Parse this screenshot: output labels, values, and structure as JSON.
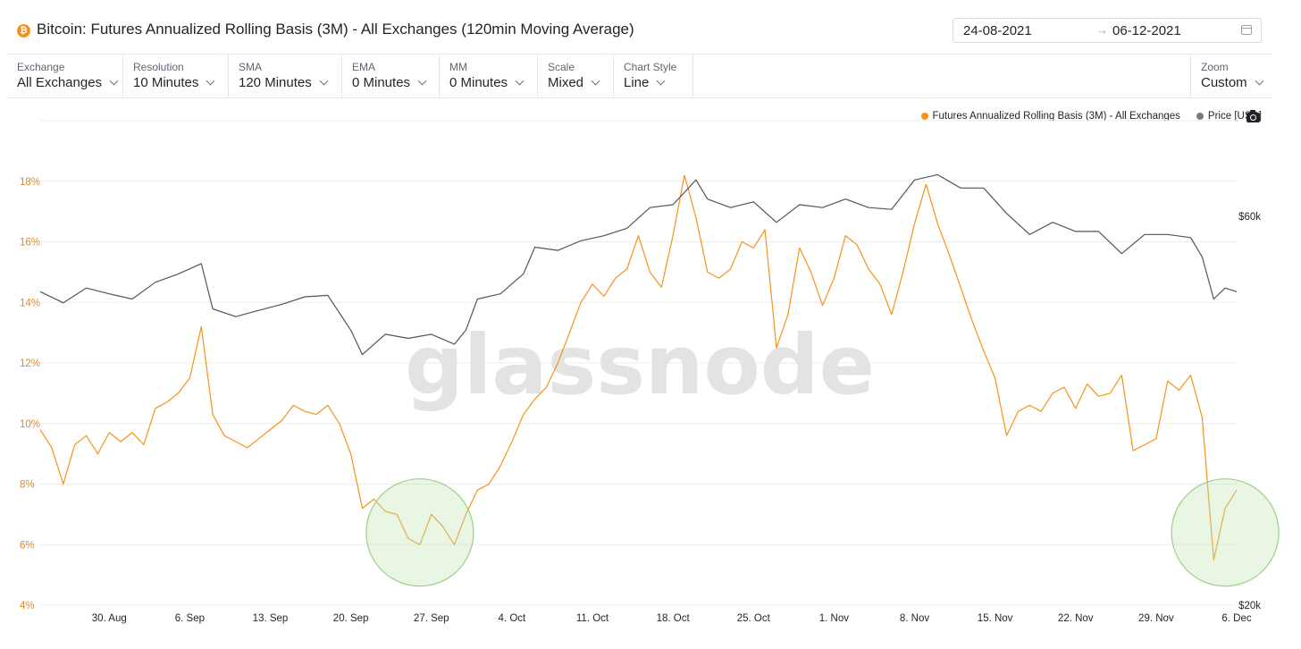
{
  "header": {
    "coin_icon": "bitcoin-icon",
    "title": "Bitcoin: Futures Annualized Rolling Basis (3M) - All Exchanges (120min Moving Average)",
    "date_start": "24-08-2021",
    "date_arrow": "→",
    "date_end": "06-12-2021"
  },
  "controls": [
    {
      "label": "Exchange",
      "value": "All Exchanges"
    },
    {
      "label": "Resolution",
      "value": "10 Minutes"
    },
    {
      "label": "SMA",
      "value": "120 Minutes"
    },
    {
      "label": "EMA",
      "value": "0 Minutes"
    },
    {
      "label": "MM",
      "value": "0 Minutes"
    },
    {
      "label": "Scale",
      "value": "Mixed"
    },
    {
      "label": "Chart Style",
      "value": "Line"
    },
    {
      "label": "Zoom",
      "value": "Custom"
    }
  ],
  "legend": [
    {
      "name": "Futures Annualized Rolling Basis (3M) - All Exchanges",
      "color": "#f7931a"
    },
    {
      "name": "Price [USD]",
      "color": "#7a7a7a"
    }
  ],
  "watermark": "glassnode",
  "chart_data": {
    "type": "line",
    "x_ticks": [
      "30. Aug",
      "6. Sep",
      "13. Sep",
      "20. Sep",
      "27. Sep",
      "4. Oct",
      "11. Oct",
      "18. Oct",
      "25. Oct",
      "1. Nov",
      "8. Nov",
      "15. Nov",
      "22. Nov",
      "29. Nov",
      "6. Dec"
    ],
    "xlim": [
      "2021-08-24",
      "2021-12-06"
    ],
    "y_left": {
      "ticks": [
        "4%",
        "6%",
        "8%",
        "10%",
        "12%",
        "14%",
        "16%",
        "18%"
      ],
      "ylim": [
        4,
        20
      ],
      "unit": "%",
      "scale": "linear"
    },
    "y_right": {
      "ticks": [
        "$20k",
        "$60k"
      ],
      "tick_values": [
        20000,
        60000
      ],
      "scale": "log"
    },
    "series": [
      {
        "name": "Futures Annualized Rolling Basis (3M) - All Exchanges",
        "axis": "left",
        "color": "#f7931a",
        "points": [
          [
            "2021-08-24",
            9.8
          ],
          [
            "2021-08-25",
            9.2
          ],
          [
            "2021-08-26",
            8.0
          ],
          [
            "2021-08-27",
            9.3
          ],
          [
            "2021-08-28",
            9.6
          ],
          [
            "2021-08-29",
            9.0
          ],
          [
            "2021-08-30",
            9.7
          ],
          [
            "2021-08-31",
            9.4
          ],
          [
            "2021-09-01",
            9.7
          ],
          [
            "2021-09-02",
            9.3
          ],
          [
            "2021-09-03",
            10.5
          ],
          [
            "2021-09-04",
            10.7
          ],
          [
            "2021-09-05",
            11.0
          ],
          [
            "2021-09-06",
            11.5
          ],
          [
            "2021-09-07",
            13.2
          ],
          [
            "2021-09-08",
            10.3
          ],
          [
            "2021-09-09",
            9.6
          ],
          [
            "2021-09-10",
            9.4
          ],
          [
            "2021-09-11",
            9.2
          ],
          [
            "2021-09-12",
            9.5
          ],
          [
            "2021-09-13",
            9.8
          ],
          [
            "2021-09-14",
            10.1
          ],
          [
            "2021-09-15",
            10.6
          ],
          [
            "2021-09-16",
            10.4
          ],
          [
            "2021-09-17",
            10.3
          ],
          [
            "2021-09-18",
            10.6
          ],
          [
            "2021-09-19",
            10.0
          ],
          [
            "2021-09-20",
            9.0
          ],
          [
            "2021-09-21",
            7.2
          ],
          [
            "2021-09-22",
            7.5
          ],
          [
            "2021-09-23",
            7.1
          ],
          [
            "2021-09-24",
            7.0
          ],
          [
            "2021-09-25",
            6.2
          ],
          [
            "2021-09-26",
            6.0
          ],
          [
            "2021-09-27",
            7.0
          ],
          [
            "2021-09-28",
            6.6
          ],
          [
            "2021-09-29",
            6.0
          ],
          [
            "2021-09-30",
            7.0
          ],
          [
            "2021-10-01",
            7.8
          ],
          [
            "2021-10-02",
            8.0
          ],
          [
            "2021-10-03",
            8.6
          ],
          [
            "2021-10-04",
            9.4
          ],
          [
            "2021-10-05",
            10.3
          ],
          [
            "2021-10-06",
            10.8
          ],
          [
            "2021-10-07",
            11.2
          ],
          [
            "2021-10-08",
            12.0
          ],
          [
            "2021-10-09",
            13.0
          ],
          [
            "2021-10-10",
            14.0
          ],
          [
            "2021-10-11",
            14.6
          ],
          [
            "2021-10-12",
            14.2
          ],
          [
            "2021-10-13",
            14.8
          ],
          [
            "2021-10-14",
            15.1
          ],
          [
            "2021-10-15",
            16.2
          ],
          [
            "2021-10-16",
            15.0
          ],
          [
            "2021-10-17",
            14.5
          ],
          [
            "2021-10-18",
            16.2
          ],
          [
            "2021-10-19",
            18.2
          ],
          [
            "2021-10-20",
            16.8
          ],
          [
            "2021-10-21",
            15.0
          ],
          [
            "2021-10-22",
            14.8
          ],
          [
            "2021-10-23",
            15.1
          ],
          [
            "2021-10-24",
            16.0
          ],
          [
            "2021-10-25",
            15.8
          ],
          [
            "2021-10-26",
            16.4
          ],
          [
            "2021-10-27",
            12.5
          ],
          [
            "2021-10-28",
            13.6
          ],
          [
            "2021-10-29",
            15.8
          ],
          [
            "2021-10-30",
            15.0
          ],
          [
            "2021-10-31",
            13.9
          ],
          [
            "2021-11-01",
            14.8
          ],
          [
            "2021-11-02",
            16.2
          ],
          [
            "2021-11-03",
            15.9
          ],
          [
            "2021-11-04",
            15.1
          ],
          [
            "2021-11-05",
            14.6
          ],
          [
            "2021-11-06",
            13.6
          ],
          [
            "2021-11-07",
            15.0
          ],
          [
            "2021-11-08",
            16.6
          ],
          [
            "2021-11-09",
            17.9
          ],
          [
            "2021-11-10",
            16.6
          ],
          [
            "2021-11-11",
            15.6
          ],
          [
            "2021-11-12",
            14.5
          ],
          [
            "2021-11-13",
            13.4
          ],
          [
            "2021-11-14",
            12.4
          ],
          [
            "2021-11-15",
            11.5
          ],
          [
            "2021-11-16",
            9.6
          ],
          [
            "2021-11-17",
            10.4
          ],
          [
            "2021-11-18",
            10.6
          ],
          [
            "2021-11-19",
            10.4
          ],
          [
            "2021-11-20",
            11.0
          ],
          [
            "2021-11-21",
            11.2
          ],
          [
            "2021-11-22",
            10.5
          ],
          [
            "2021-11-23",
            11.3
          ],
          [
            "2021-11-24",
            10.9
          ],
          [
            "2021-11-25",
            11.0
          ],
          [
            "2021-11-26",
            11.6
          ],
          [
            "2021-11-27",
            9.1
          ],
          [
            "2021-11-28",
            9.3
          ],
          [
            "2021-11-29",
            9.5
          ],
          [
            "2021-11-30",
            11.4
          ],
          [
            "2021-12-01",
            11.1
          ],
          [
            "2021-12-02",
            11.6
          ],
          [
            "2021-12-03",
            10.2
          ],
          [
            "2021-12-04",
            5.5
          ],
          [
            "2021-12-05",
            7.2
          ],
          [
            "2021-12-06",
            7.8
          ]
        ]
      },
      {
        "name": "Price [USD]",
        "axis": "right",
        "color": "#555555",
        "points": [
          [
            "2021-08-24",
            48500
          ],
          [
            "2021-08-26",
            47000
          ],
          [
            "2021-08-28",
            49000
          ],
          [
            "2021-08-30",
            48200
          ],
          [
            "2021-09-01",
            47500
          ],
          [
            "2021-09-03",
            49800
          ],
          [
            "2021-09-05",
            51000
          ],
          [
            "2021-09-07",
            52500
          ],
          [
            "2021-09-08",
            46200
          ],
          [
            "2021-09-10",
            45200
          ],
          [
            "2021-09-12",
            46000
          ],
          [
            "2021-09-14",
            46800
          ],
          [
            "2021-09-16",
            47800
          ],
          [
            "2021-09-18",
            48000
          ],
          [
            "2021-09-20",
            43500
          ],
          [
            "2021-09-21",
            40600
          ],
          [
            "2021-09-23",
            43000
          ],
          [
            "2021-09-25",
            42500
          ],
          [
            "2021-09-27",
            43000
          ],
          [
            "2021-09-29",
            41800
          ],
          [
            "2021-09-30",
            43500
          ],
          [
            "2021-10-01",
            47500
          ],
          [
            "2021-10-03",
            48200
          ],
          [
            "2021-10-05",
            51000
          ],
          [
            "2021-10-06",
            55000
          ],
          [
            "2021-10-08",
            54500
          ],
          [
            "2021-10-10",
            56000
          ],
          [
            "2021-10-12",
            56800
          ],
          [
            "2021-10-14",
            58000
          ],
          [
            "2021-10-16",
            61500
          ],
          [
            "2021-10-18",
            62000
          ],
          [
            "2021-10-20",
            66500
          ],
          [
            "2021-10-21",
            63000
          ],
          [
            "2021-10-23",
            61500
          ],
          [
            "2021-10-25",
            62500
          ],
          [
            "2021-10-27",
            59000
          ],
          [
            "2021-10-29",
            62000
          ],
          [
            "2021-10-31",
            61500
          ],
          [
            "2021-11-02",
            63000
          ],
          [
            "2021-11-04",
            61500
          ],
          [
            "2021-11-06",
            61200
          ],
          [
            "2021-11-08",
            66500
          ],
          [
            "2021-11-10",
            67500
          ],
          [
            "2021-11-12",
            65000
          ],
          [
            "2021-11-14",
            65000
          ],
          [
            "2021-11-16",
            60500
          ],
          [
            "2021-11-18",
            57000
          ],
          [
            "2021-11-20",
            59000
          ],
          [
            "2021-11-22",
            57500
          ],
          [
            "2021-11-24",
            57500
          ],
          [
            "2021-11-26",
            54000
          ],
          [
            "2021-11-28",
            57000
          ],
          [
            "2021-11-30",
            57000
          ],
          [
            "2021-12-02",
            56500
          ],
          [
            "2021-12-03",
            53500
          ],
          [
            "2021-12-04",
            47500
          ],
          [
            "2021-12-05",
            49000
          ],
          [
            "2021-12-06",
            48500
          ]
        ]
      }
    ],
    "annotations": [
      {
        "type": "circle",
        "label": "",
        "center_date": "2021-09-26",
        "center_value": 6.4,
        "color": "#9ccf8a"
      },
      {
        "type": "circle",
        "label": "",
        "center_date": "2021-12-05",
        "center_value": 6.4,
        "color": "#9ccf8a"
      }
    ],
    "grid": true,
    "legend_position": "top-right"
  }
}
